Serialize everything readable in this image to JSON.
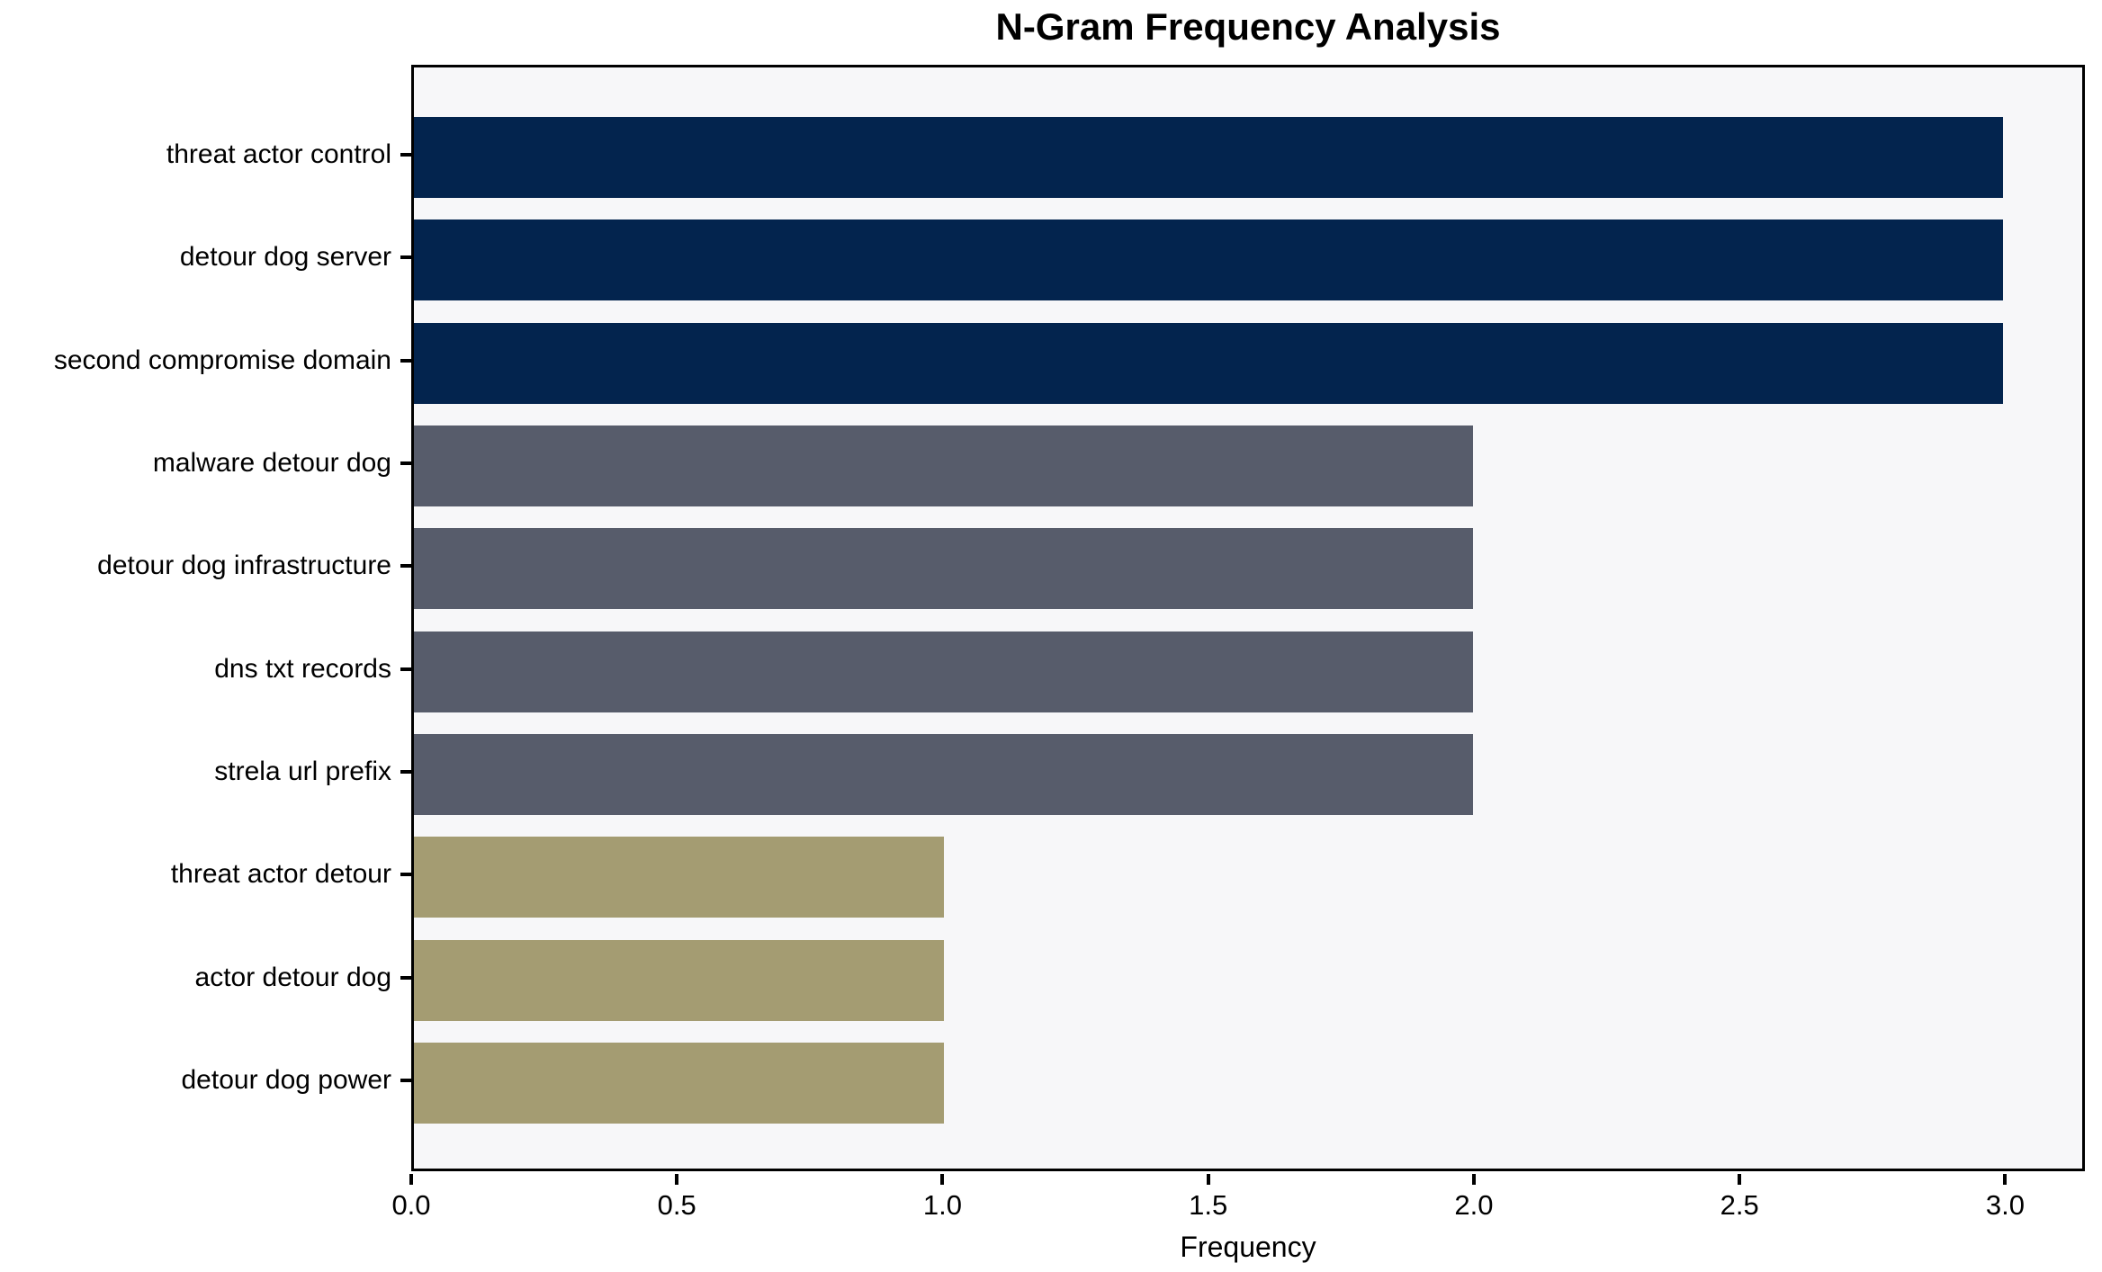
{
  "chart_data": {
    "type": "bar",
    "orientation": "horizontal",
    "title": "N-Gram Frequency Analysis",
    "xlabel": "Frequency",
    "ylabel": "",
    "categories": [
      "threat actor control",
      "detour dog server",
      "second compromise domain",
      "malware detour dog",
      "detour dog infrastructure",
      "dns txt records",
      "strela url prefix",
      "threat actor detour",
      "actor detour dog",
      "detour dog power"
    ],
    "values": [
      3,
      3,
      3,
      2,
      2,
      2,
      2,
      1,
      1,
      1
    ],
    "bar_colors": [
      "#03244E",
      "#03244E",
      "#03244E",
      "#575C6B",
      "#575C6B",
      "#575C6B",
      "#575C6B",
      "#A49C72",
      "#A49C72",
      "#A49C72"
    ],
    "palette": {
      "freq3_navy": "#03244E",
      "freq2_slate": "#575C6B",
      "freq1_khaki": "#A49C72"
    },
    "x_tick_labels": [
      "0.0",
      "0.5",
      "1.0",
      "1.5",
      "2.0",
      "2.5",
      "3.0"
    ],
    "x_tick_values": [
      0,
      0.5,
      1,
      1.5,
      2,
      2.5,
      3
    ],
    "xlim": [
      0,
      3.15
    ],
    "grid": false,
    "legend": "none",
    "plot_background": "#F7F7F9",
    "figure_background": "#FFFFFF",
    "axis_color": "#000000",
    "text_color": "#000000"
  }
}
